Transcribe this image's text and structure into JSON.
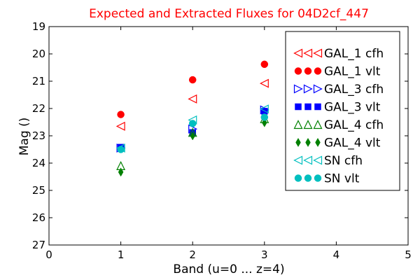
{
  "chart_data": {
    "type": "scatter",
    "title": "Expected and Extracted Fluxes for 04D2cf_447",
    "xlabel": "Band (u=0 ... z=4)",
    "ylabel": "Mag ()",
    "xlim": [
      0,
      5
    ],
    "ylim": [
      27,
      19
    ],
    "y_inverted": true,
    "x_ticks": [
      "0",
      "1",
      "2",
      "3",
      "4",
      "5"
    ],
    "y_ticks": [
      "19",
      "20",
      "21",
      "22",
      "23",
      "24",
      "25",
      "26",
      "27"
    ],
    "grid": false,
    "legend_position": "top-right",
    "colors": {
      "title": "#ff0000",
      "red": "#ff0000",
      "blue": "#0000ff",
      "green": "#008000",
      "cyan": "#00bfbf"
    },
    "series": [
      {
        "name": "GAL_1 cfh",
        "marker": "triangle-left",
        "filled": false,
        "color": "#ff0000",
        "points": [
          {
            "x": 1,
            "y": 22.65
          },
          {
            "x": 2,
            "y": 21.65
          },
          {
            "x": 3,
            "y": 21.08
          }
        ]
      },
      {
        "name": "GAL_1 vlt",
        "marker": "circle",
        "filled": true,
        "color": "#ff0000",
        "points": [
          {
            "x": 1,
            "y": 22.22
          },
          {
            "x": 2,
            "y": 20.95
          },
          {
            "x": 3,
            "y": 20.38
          }
        ]
      },
      {
        "name": "GAL_3 cfh",
        "marker": "triangle-right",
        "filled": false,
        "color": "#0000ff",
        "points": [
          {
            "x": 1,
            "y": 23.45
          },
          {
            "x": 2,
            "y": 22.75
          },
          {
            "x": 3,
            "y": 22.05
          }
        ]
      },
      {
        "name": "GAL_3 vlt",
        "marker": "square",
        "filled": true,
        "color": "#0000ff",
        "points": [
          {
            "x": 1,
            "y": 23.42
          },
          {
            "x": 2,
            "y": 22.88
          },
          {
            "x": 3,
            "y": 22.1
          }
        ]
      },
      {
        "name": "GAL_4 cfh",
        "marker": "triangle-up",
        "filled": false,
        "color": "#008000",
        "points": [
          {
            "x": 1,
            "y": 24.1
          },
          {
            "x": 2,
            "y": 22.88
          },
          {
            "x": 3,
            "y": 22.38
          }
        ]
      },
      {
        "name": "GAL_4 vlt",
        "marker": "diamond",
        "filled": true,
        "color": "#008000",
        "points": [
          {
            "x": 1,
            "y": 24.33
          },
          {
            "x": 2,
            "y": 23.0
          },
          {
            "x": 3,
            "y": 22.52
          }
        ]
      },
      {
        "name": "SN cfh",
        "marker": "triangle-left",
        "filled": false,
        "color": "#00bfbf",
        "points": [
          {
            "x": 1,
            "y": 23.45
          },
          {
            "x": 2,
            "y": 22.42
          },
          {
            "x": 3,
            "y": 22.02
          }
        ]
      },
      {
        "name": "SN vlt",
        "marker": "circle",
        "filled": true,
        "color": "#00bfbf",
        "points": [
          {
            "x": 1,
            "y": 23.5
          },
          {
            "x": 2,
            "y": 22.55
          },
          {
            "x": 3,
            "y": 22.32
          }
        ]
      }
    ]
  }
}
